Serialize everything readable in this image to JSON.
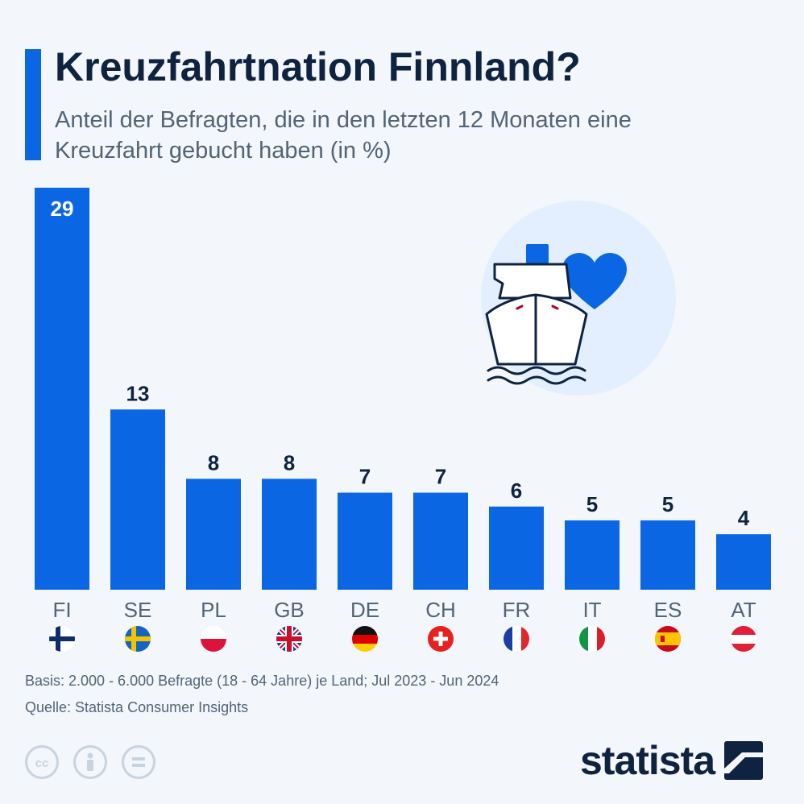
{
  "header": {
    "title": "Kreuzfahrtnation Finnland?",
    "subtitle": "Anteil der Befragten, die in den letzten 12 Monaten eine Kreuzfahrt gebucht haben (in %)"
  },
  "colors": {
    "bar": "#0b66e4",
    "title": "#0f2340",
    "text": "#526477",
    "background": "#f3f6fa",
    "illustration_circle": "#e3effe"
  },
  "chart_data": {
    "type": "bar",
    "title": "Kreuzfahrtnation Finnland?",
    "subtitle": "Anteil der Befragten, die in den letzten 12 Monaten eine Kreuzfahrt gebucht haben (in %)",
    "xlabel": "",
    "ylabel": "",
    "ylim": [
      0,
      29
    ],
    "grid": false,
    "categories": [
      "FI",
      "SE",
      "PL",
      "GB",
      "DE",
      "CH",
      "FR",
      "IT",
      "ES",
      "AT"
    ],
    "values": [
      29,
      13,
      8,
      8,
      7,
      7,
      6,
      5,
      5,
      4
    ],
    "flags": [
      "flag-finland-icon",
      "flag-sweden-icon",
      "flag-poland-icon",
      "flag-uk-icon",
      "flag-germany-icon",
      "flag-switzerland-icon",
      "flag-france-icon",
      "flag-italy-icon",
      "flag-spain-icon",
      "flag-austria-icon"
    ],
    "illustration": "cruise-ship-heart-icon"
  },
  "footer": {
    "basis": "Basis: 2.000 - 6.000 Befragte (18 - 64 Jahre) je Land; Jul 2023 - Jun 2024",
    "source": "Quelle: Statista Consumer Insights"
  },
  "licenses": [
    "cc-icon",
    "by-icon",
    "nd-icon"
  ],
  "brand": {
    "name": "statista",
    "logo": "statista-logo-icon"
  }
}
